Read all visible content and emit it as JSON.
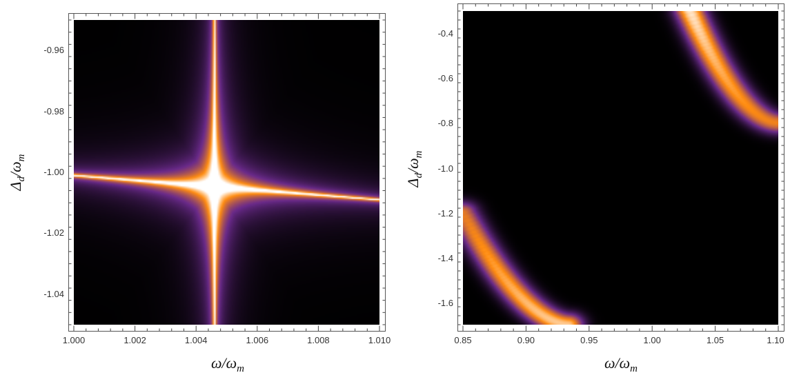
{
  "chart_data": [
    {
      "type": "heatmap",
      "title": "",
      "xlabel": "ω/ω_m",
      "ylabel": "Δ_d/ω_m",
      "xlim": [
        1.0,
        1.01
      ],
      "ylim": [
        -1.05,
        -0.95
      ],
      "xticks": [
        1.0,
        1.002,
        1.004,
        1.006,
        1.008,
        1.01
      ],
      "xtick_labels": [
        "1.000",
        "1.002",
        "1.004",
        "1.006",
        "1.008",
        "1.010"
      ],
      "yticks": [
        -0.96,
        -0.98,
        -1.0,
        -1.02,
        -1.04
      ],
      "ytick_labels": [
        "-0.96",
        "-0.98",
        "-1.00",
        "-1.02",
        "-1.04"
      ],
      "colormap": "black-purple-orange-white",
      "features": {
        "vertical_ridge_x": 1.0046,
        "horizontal_ridge": {
          "x": [
            1.0,
            1.01
          ],
          "y": [
            -1.001,
            -1.009
          ]
        },
        "crossing": {
          "x": 1.0046,
          "y": -1.005
        }
      }
    },
    {
      "type": "heatmap",
      "title": "",
      "xlabel": "ω/ω_m",
      "ylabel": "Δ_d/ω_m",
      "xlim": [
        0.85,
        1.1
      ],
      "ylim": [
        -1.7,
        -0.3
      ],
      "xticks": [
        0.85,
        0.9,
        0.95,
        1.0,
        1.05,
        1.1
      ],
      "xtick_labels": [
        "0.85",
        "0.90",
        "0.95",
        "1.00",
        "1.05",
        "1.10"
      ],
      "yticks": [
        -0.4,
        -0.6,
        -0.8,
        -1.0,
        -1.2,
        -1.4,
        -1.6
      ],
      "ytick_labels": [
        "-0.4",
        "-0.6",
        "-0.8",
        "-1.0",
        "-1.2",
        "-1.4",
        "-1.6"
      ],
      "colormap": "black-purple-orange-white",
      "features": {
        "upper_band": {
          "x": [
            1.03,
            1.1
          ],
          "y": [
            -0.3,
            -0.8
          ]
        },
        "lower_band": {
          "x": [
            0.85,
            0.935
          ],
          "y": [
            -1.2,
            -1.7
          ]
        }
      }
    }
  ],
  "colors": {
    "background": "#ffffff",
    "map_low": "#000000",
    "map_mid": "#6a2a8a",
    "map_high": "#ff8c10",
    "map_peak": "#ffffff"
  }
}
